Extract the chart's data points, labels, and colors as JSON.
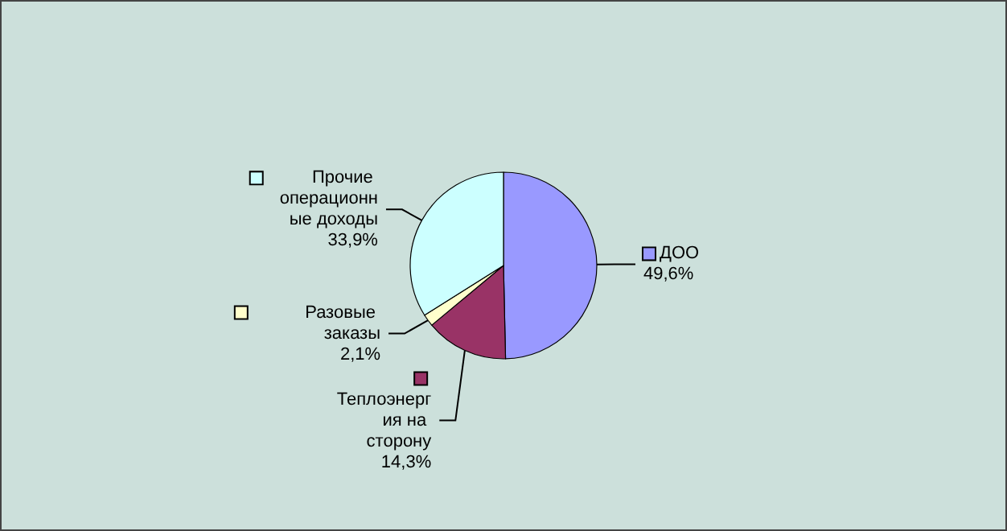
{
  "chart_data": {
    "type": "pie",
    "categories": [
      "ДОО",
      "Теплоэнергия на сторону",
      "Разовые заказы",
      "Прочие операционные доходы"
    ],
    "values": [
      49.6,
      14.3,
      2.1,
      33.9
    ],
    "colors": [
      "#9999ff",
      "#993366",
      "#ffffcc",
      "#ccffff"
    ],
    "value_labels": [
      "49,6%",
      "14,3%",
      "2,1%",
      "33,9%"
    ]
  }
}
